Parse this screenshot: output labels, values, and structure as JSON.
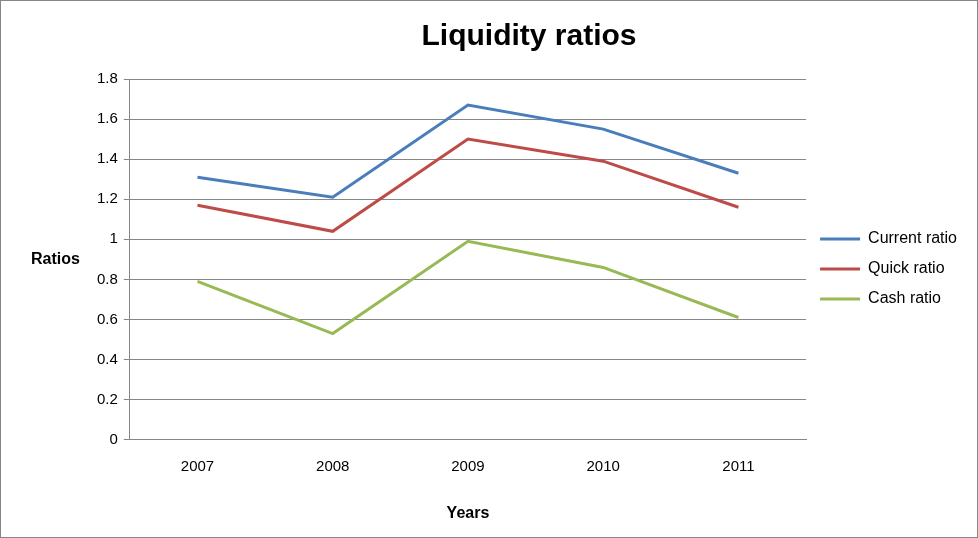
{
  "chart_data": {
    "type": "line",
    "title": "Liquidity ratios",
    "x_label": "Years",
    "y_label": "Ratios",
    "categories": [
      "2007",
      "2008",
      "2009",
      "2010",
      "2011"
    ],
    "series": [
      {
        "name": "Current ratio",
        "color": "#4a7ebb",
        "values": [
          1.31,
          1.21,
          1.67,
          1.55,
          1.33
        ]
      },
      {
        "name": "Quick ratio",
        "color": "#be4b48",
        "values": [
          1.17,
          1.04,
          1.5,
          1.39,
          1.16
        ]
      },
      {
        "name": "Cash ratio",
        "color": "#98b954",
        "values": [
          0.79,
          0.53,
          0.99,
          0.86,
          0.61
        ]
      }
    ],
    "ylim": [
      0,
      1.8
    ],
    "yticks": [
      0,
      0.2,
      0.4,
      0.6,
      0.8,
      1,
      1.2,
      1.4,
      1.6,
      1.8
    ],
    "grid": true,
    "legend": "right"
  }
}
